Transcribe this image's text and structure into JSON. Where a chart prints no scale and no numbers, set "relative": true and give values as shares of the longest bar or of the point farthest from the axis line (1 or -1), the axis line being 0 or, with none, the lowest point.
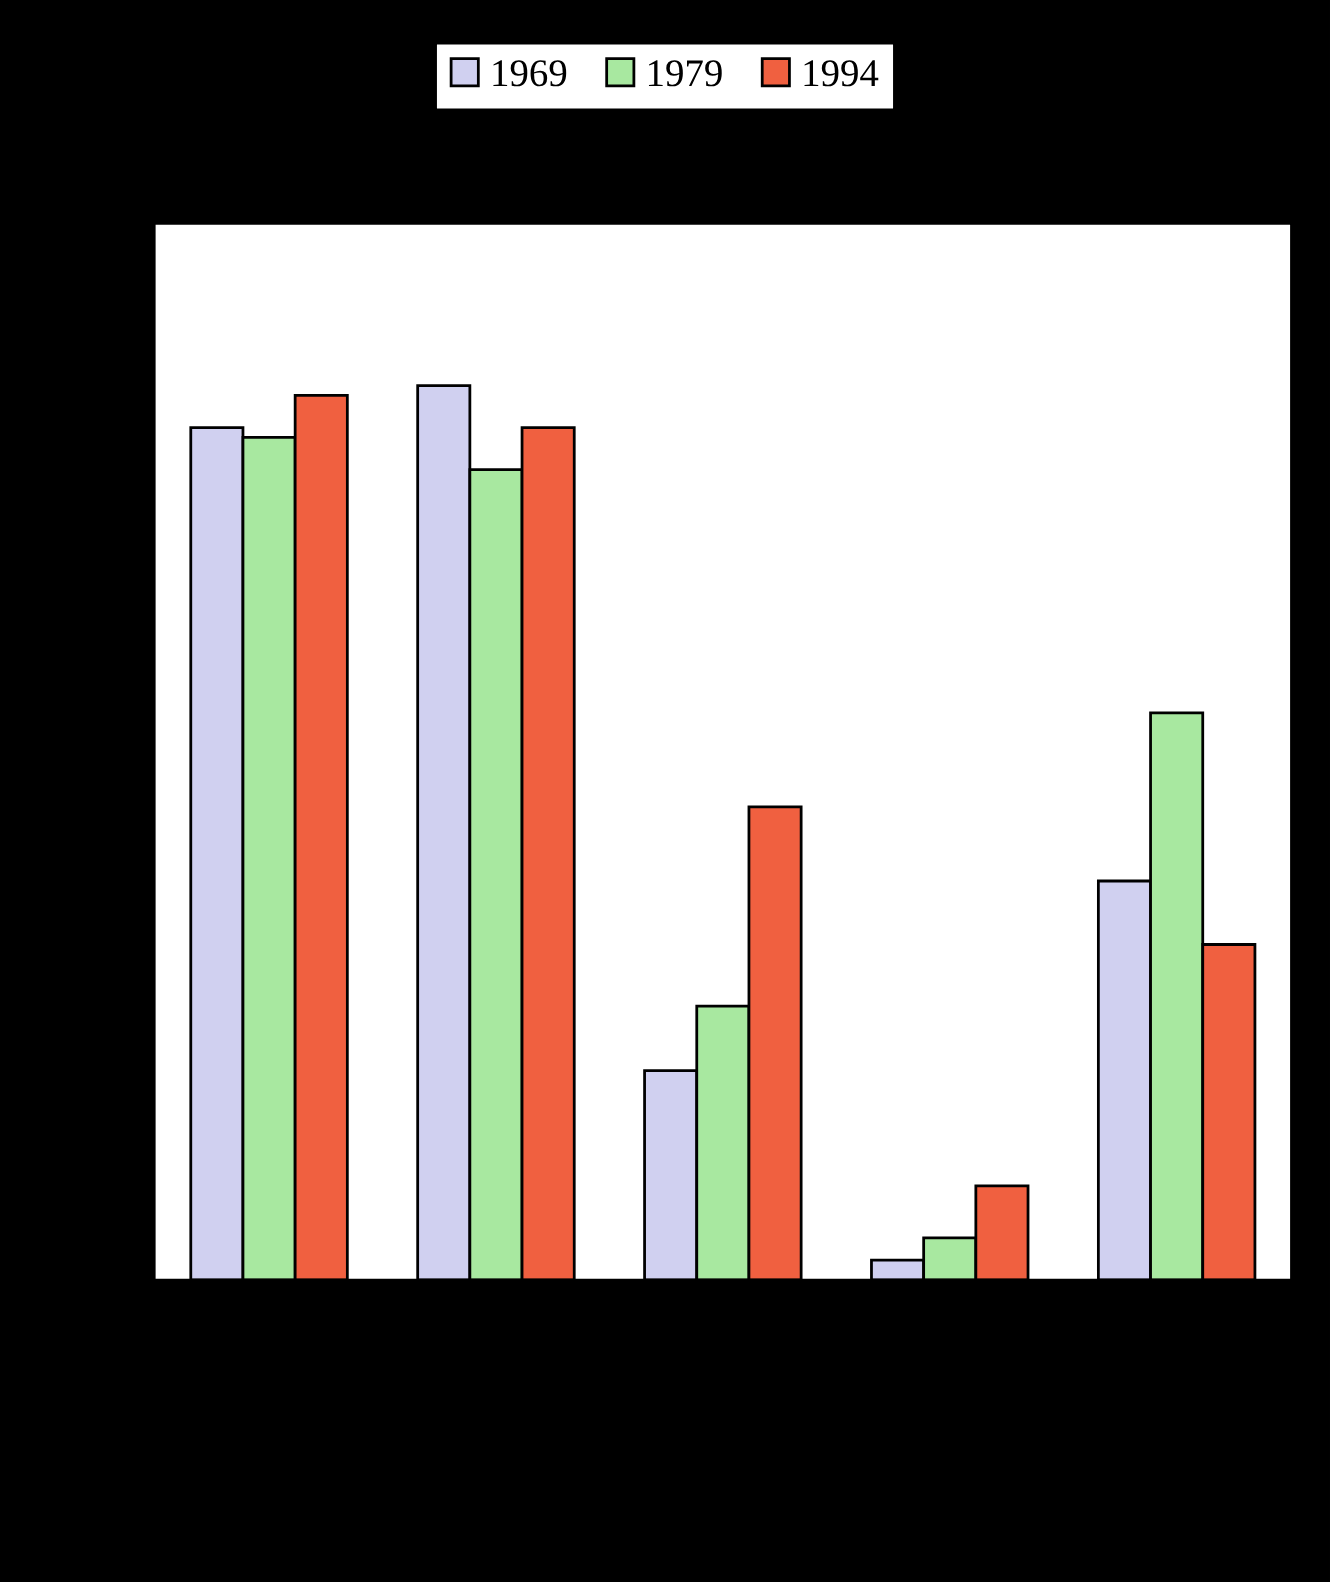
{
  "chart_data": {
    "type": "bar",
    "relative": true,
    "categories": [
      null,
      null,
      null,
      null,
      null
    ],
    "series": [
      {
        "name": "1969",
        "color": "#d0d0f0",
        "values": [
          0.953,
          1,
          0.234,
          0.022,
          0.446
        ]
      },
      {
        "name": "1979",
        "color": "#a8e8a0",
        "values": [
          0.942,
          0.906,
          0.306,
          0.047,
          0.634
        ]
      },
      {
        "name": "1994",
        "color": "#f06040",
        "values": [
          0.989,
          0.953,
          0.529,
          0.105,
          0.375
        ]
      }
    ],
    "legend": "top",
    "grid": false
  }
}
